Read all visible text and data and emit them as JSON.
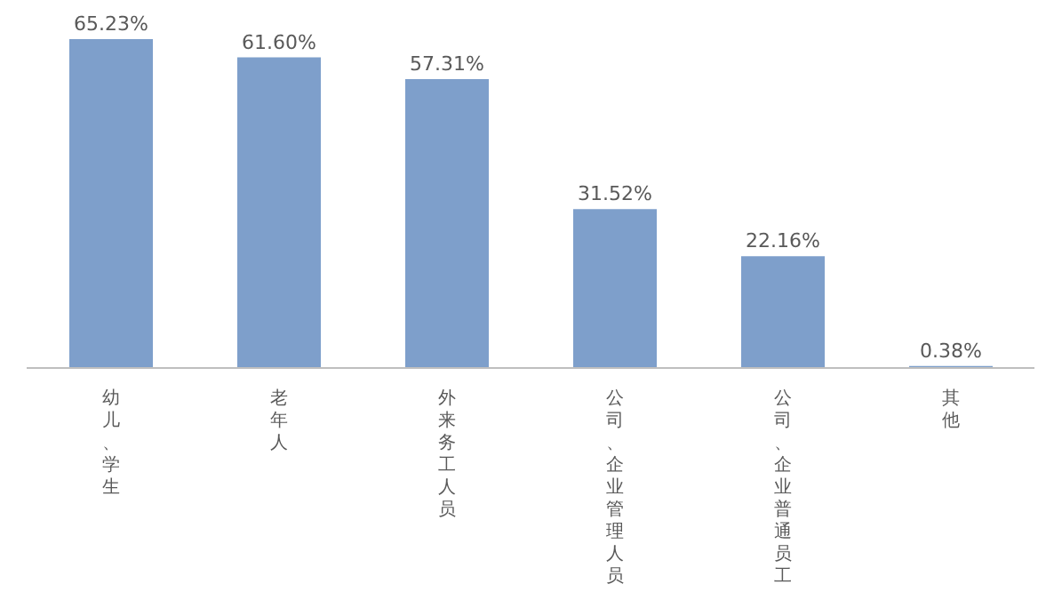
{
  "chart_data": {
    "type": "bar",
    "categories": [
      "幼儿、学生",
      "老年人",
      "外来务工人员",
      "公司、企业管理人员",
      "公司、企业普通员工",
      "其他"
    ],
    "values": [
      65.23,
      61.6,
      57.31,
      31.52,
      22.16,
      0.38
    ],
    "value_labels": [
      "65.23%",
      "61.60%",
      "57.31%",
      "31.52%",
      "22.16%",
      "0.38%"
    ],
    "color": "#7e9fcb"
  }
}
